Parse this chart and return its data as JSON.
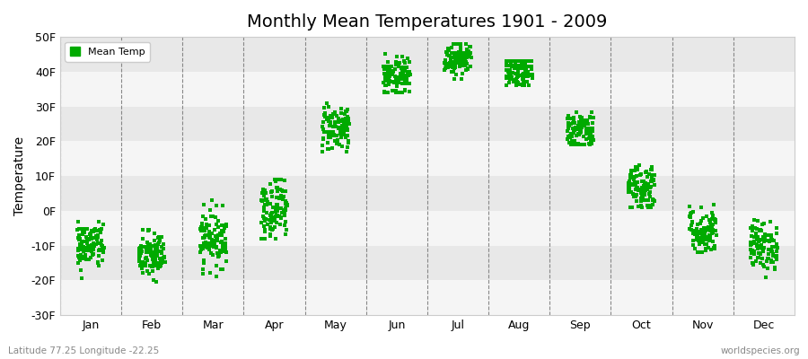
{
  "title": "Monthly Mean Temperatures 1901 - 2009",
  "ylabel": "Temperature",
  "ylim": [
    -30,
    50
  ],
  "yticks": [
    -30,
    -20,
    -10,
    0,
    10,
    20,
    30,
    40,
    50
  ],
  "ytick_labels": [
    "-30F",
    "-20F",
    "-10F",
    "0F",
    "10F",
    "20F",
    "30F",
    "40F",
    "50F"
  ],
  "months": [
    "Jan",
    "Feb",
    "Mar",
    "Apr",
    "May",
    "Jun",
    "Jul",
    "Aug",
    "Sep",
    "Oct",
    "Nov",
    "Dec"
  ],
  "month_means": [
    -10,
    -13,
    -8,
    1,
    24,
    38,
    44,
    40,
    23,
    7,
    -6,
    -10
  ],
  "month_stds": [
    3.5,
    3.5,
    4.0,
    4.5,
    3.5,
    3.0,
    2.5,
    2.5,
    3.0,
    3.5,
    3.5,
    3.5
  ],
  "month_min": [
    -23,
    -23,
    -25,
    -8,
    17,
    34,
    38,
    36,
    19,
    1,
    -12,
    -20
  ],
  "month_max": [
    -3,
    -4,
    6,
    9,
    31,
    46,
    48,
    43,
    29,
    14,
    6,
    2
  ],
  "n_points": 109,
  "dot_color": "#00aa00",
  "dot_size": 5,
  "marker": "s",
  "bg_color": "#ffffff",
  "plot_bg_color": "#f0f0f0",
  "band_colors": [
    "#f5f5f5",
    "#e8e8e8"
  ],
  "dashed_line_color": "#888888",
  "title_fontsize": 14,
  "axis_fontsize": 10,
  "tick_fontsize": 9,
  "legend_label": "Mean Temp",
  "footer_left": "Latitude 77.25 Longitude -22.25",
  "footer_right": "worldspecies.org",
  "seed": 42
}
